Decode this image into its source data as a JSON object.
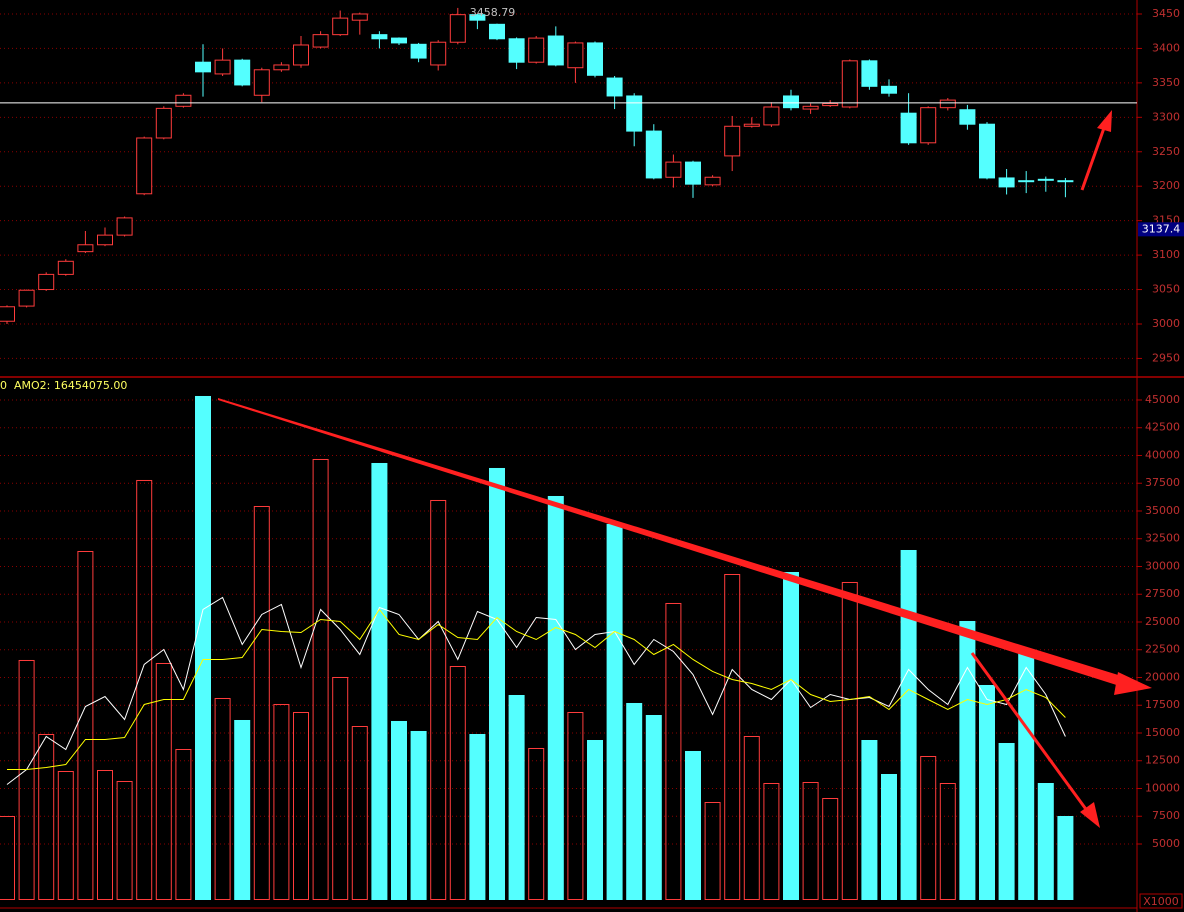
{
  "chart_data": [
    {
      "type": "candlestick",
      "annotation": "3458.79",
      "current_price": {
        "value": 3137.4,
        "label": "3137.4"
      },
      "reference_line": 3321,
      "up_color": "#ff3c3c",
      "down_color": "#54ffff",
      "open": [
        3004,
        3026,
        3050,
        3072,
        3105,
        3115,
        3129,
        3189,
        3270,
        3316,
        3380,
        3363,
        3383,
        3332,
        3369,
        3376,
        3402,
        3420,
        3441,
        3420,
        3415,
        3406,
        3376,
        3409,
        3449,
        3435,
        3414,
        3380,
        3418,
        3372,
        3408,
        3357,
        3331,
        3280,
        3213,
        3235,
        3202,
        3244,
        3287,
        3289,
        3331,
        3312,
        3317,
        3315,
        3382,
        3345,
        3306,
        3263,
        3314,
        3311,
        3290,
        3212,
        3208,
        3210,
        3208
      ],
      "close": [
        3025,
        3049,
        3072,
        3091,
        3115,
        3129,
        3154,
        3270,
        3313,
        3332,
        3366,
        3383,
        3347,
        3369,
        3376,
        3405,
        3420,
        3444,
        3450,
        3414,
        3408,
        3386,
        3409,
        3449,
        3441,
        3414,
        3380,
        3415,
        3376,
        3408,
        3361,
        3331,
        3280,
        3212,
        3235,
        3203,
        3213,
        3287,
        3290,
        3315,
        3314,
        3316,
        3320,
        3382,
        3345,
        3335,
        3263,
        3314,
        3325,
        3290,
        3212,
        3199,
        3207,
        3209,
        3207
      ],
      "high": [
        3027,
        3050,
        3075,
        3094,
        3135,
        3140,
        3156,
        3272,
        3316,
        3335,
        3406,
        3400,
        3385,
        3372,
        3380,
        3418,
        3425,
        3455,
        3452,
        3425,
        3416,
        3408,
        3412,
        3458.79,
        3450,
        3436,
        3416,
        3418,
        3432,
        3410,
        3410,
        3360,
        3335,
        3290,
        3246,
        3237,
        3216,
        3302,
        3300,
        3322,
        3340,
        3320,
        3325,
        3384,
        3384,
        3355,
        3335,
        3316,
        3328,
        3318,
        3293,
        3225,
        3222,
        3214,
        3212
      ],
      "low": [
        3000,
        3024,
        3048,
        3070,
        3103,
        3113,
        3127,
        3187,
        3268,
        3314,
        3330,
        3360,
        3345,
        3322,
        3366,
        3372,
        3400,
        3418,
        3420,
        3400,
        3405,
        3380,
        3368,
        3406,
        3428,
        3412,
        3370,
        3378,
        3374,
        3350,
        3358,
        3312,
        3258,
        3210,
        3198,
        3183,
        3200,
        3222,
        3285,
        3286,
        3310,
        3305,
        3315,
        3313,
        3340,
        3330,
        3260,
        3260,
        3310,
        3282,
        3210,
        3188,
        3190,
        3192,
        3184
      ],
      "ylim": [
        2924.5,
        3470.3
      ],
      "yticks": [
        2950,
        3000,
        3050,
        3100,
        3150,
        3200,
        3250,
        3300,
        3350,
        3400,
        3450
      ]
    },
    {
      "type": "bar",
      "header": [
        "0",
        "AMO2: 16454075.00"
      ],
      "unit": "X1000",
      "values": [
        7478,
        21532,
        14865,
        11531,
        31351,
        11622,
        10631,
        37748,
        21261,
        13513,
        45315,
        18108,
        16126,
        35405,
        17568,
        16847,
        39640,
        20000,
        15585,
        39279,
        16036,
        15135,
        35946,
        20991,
        14865,
        38829,
        18378,
        13604,
        36306,
        16847,
        14324,
        33784,
        17658,
        16576,
        26667,
        13333,
        8739,
        29279,
        14685,
        10450,
        29459,
        10541,
        9099,
        28559,
        14324,
        11261,
        31441,
        12883,
        10450,
        25045,
        19279,
        14054,
        22342,
        10450,
        7478
      ],
      "lines": [
        {
          "color": "#ffffff",
          "values": [
            10360,
            11712,
            14685,
            13514,
            17387,
            18288,
            16216,
            21171,
            22523,
            18919,
            26126,
            27207,
            22973,
            25676,
            26577,
            20901,
            26126,
            24324,
            22072,
            26306,
            25676,
            23423,
            25045,
            21622,
            25946,
            25225,
            22703,
            25405,
            25225,
            22523,
            23874,
            24144,
            21171,
            23423,
            22342,
            20270,
            16667,
            20721,
            18919,
            18018,
            19820,
            17297,
            18468,
            18018,
            18198,
            17387,
            20721,
            18919,
            17568,
            20901,
            18018,
            17568,
            20901,
            18468,
            14685
          ]
        },
        {
          "color": "#ffff00",
          "values": [
            11712,
            11712,
            11892,
            12162,
            14414,
            14414,
            14595,
            17568,
            18018,
            18018,
            21622,
            21622,
            21802,
            24324,
            24144,
            24054,
            25225,
            25045,
            23423,
            26126,
            23874,
            23423,
            24775,
            23604,
            23423,
            25405,
            24144,
            23423,
            24505,
            23874,
            22703,
            24144,
            23423,
            22072,
            22973,
            21622,
            20541,
            19820,
            19459,
            18919,
            19820,
            18468,
            17838,
            18018,
            18288,
            17117,
            18919,
            18018,
            17117,
            18018,
            17568,
            18018,
            18919,
            18198,
            16396
          ]
        }
      ],
      "ylim": [
        -45,
        46800
      ],
      "yticks": [
        5000,
        7500,
        10000,
        12500,
        15000,
        17500,
        20000,
        22500,
        25000,
        27500,
        30000,
        32500,
        35000,
        37500,
        40000,
        42500,
        45000
      ]
    }
  ]
}
